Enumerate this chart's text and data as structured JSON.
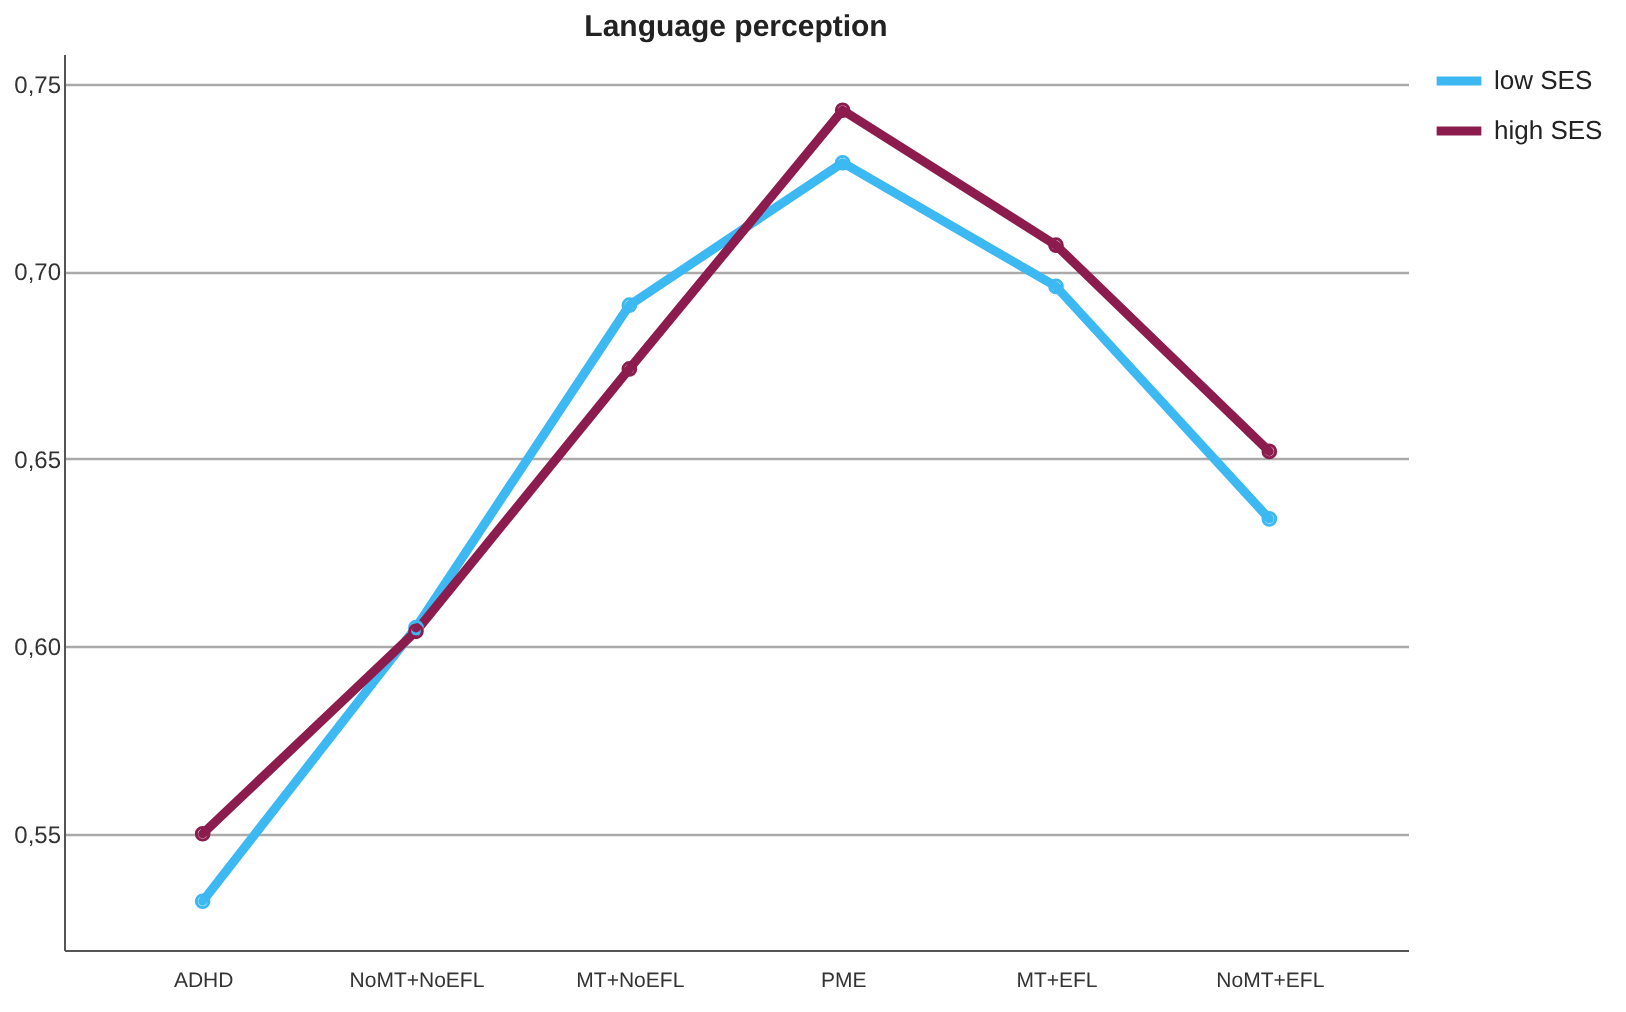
{
  "chart_data": {
    "type": "line",
    "title": "Language perception",
    "categories": [
      "ADHD",
      "NoMT+NoEFL",
      "MT+NoEFL",
      "PME",
      "MT+EFL",
      "NoMT+EFL"
    ],
    "series": [
      {
        "name": "low SES",
        "color": "#3cb8f2",
        "values": [
          0.532,
          0.605,
          0.691,
          0.729,
          0.696,
          0.634
        ]
      },
      {
        "name": "high SES",
        "color": "#8c1c4e",
        "values": [
          0.55,
          0.604,
          0.674,
          0.743,
          0.707,
          0.652
        ]
      }
    ],
    "ylim": [
      0.519,
      0.758
    ],
    "yticks": [
      {
        "value": 0.55,
        "label": "0,55"
      },
      {
        "value": 0.6,
        "label": "0,60"
      },
      {
        "value": 0.65,
        "label": "0,65"
      },
      {
        "value": 0.7,
        "label": "0,70"
      },
      {
        "value": 0.75,
        "label": "0,75"
      }
    ],
    "grid": "y",
    "legend": "right",
    "marker": "circle",
    "line_style": "solid"
  }
}
